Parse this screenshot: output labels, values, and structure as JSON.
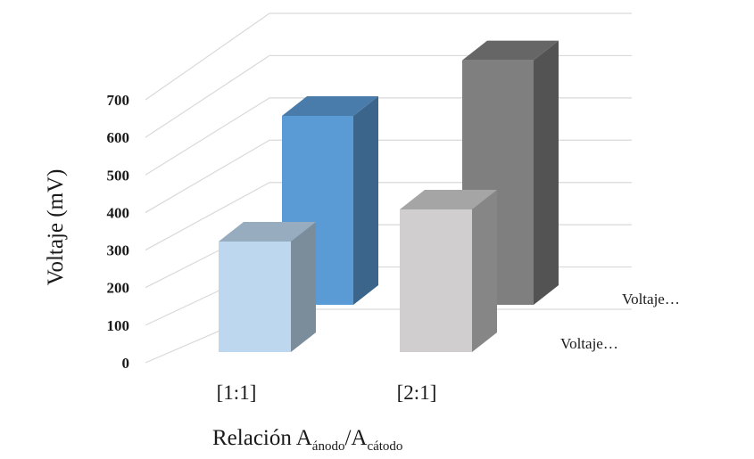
{
  "chart_data": {
    "type": "bar",
    "style": "3d-column",
    "title": "",
    "xlabel": {
      "main": "Relación A",
      "sub1": "ánodo",
      "mid": "/A",
      "sub2": "cátodo"
    },
    "ylabel": "Voltaje (mV)",
    "ylim": [
      0,
      700
    ],
    "yticks": [
      "0",
      "100",
      "200",
      "300",
      "400",
      "500",
      "600",
      "700"
    ],
    "grid": true,
    "categories": [
      "[1:1]",
      "[2:1]"
    ],
    "series": [
      {
        "name": "Voltaje…",
        "values": [
          310,
          400
        ],
        "colors": [
          "#bdd7ee",
          "#d0cece"
        ]
      },
      {
        "name": "Voltaje…",
        "values": [
          510,
          660
        ],
        "colors": [
          "#5b9bd5",
          "#7f7f7f"
        ]
      }
    ]
  }
}
